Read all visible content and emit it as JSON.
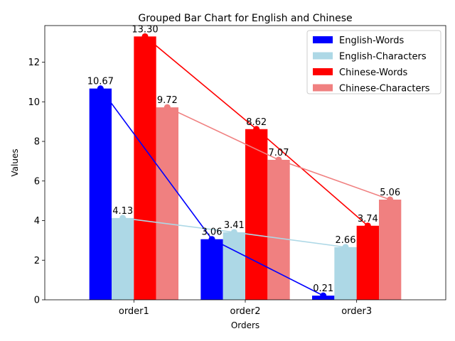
{
  "chart_data": {
    "type": "bar",
    "title": "Grouped Bar Chart for English and Chinese",
    "xlabel": "Orders",
    "ylabel": "Values",
    "categories": [
      "order1",
      "order2",
      "order3"
    ],
    "ylim": [
      0,
      13.85
    ],
    "yticks": [
      0,
      2,
      4,
      6,
      8,
      10,
      12
    ],
    "ytick_labels": [
      "0",
      "2",
      "4",
      "6",
      "8",
      "10",
      "12"
    ],
    "grid": false,
    "legend_position": "top-right",
    "series": [
      {
        "name": "English-Words",
        "color": "#0000ff",
        "values": [
          10.67,
          3.06,
          0.21
        ],
        "labels": [
          "10.67",
          "3.06",
          "0.21"
        ]
      },
      {
        "name": "English-Characters",
        "color": "#add8e6",
        "values": [
          4.13,
          3.41,
          2.66
        ],
        "labels": [
          "4.13",
          "3.41",
          "2.66"
        ]
      },
      {
        "name": "Chinese-Words",
        "color": "#ff0000",
        "values": [
          13.3,
          8.62,
          3.74
        ],
        "labels": [
          "13.30",
          "8.62",
          "3.74"
        ]
      },
      {
        "name": "Chinese-Characters",
        "color": "#f08080",
        "values": [
          9.72,
          7.07,
          5.06
        ],
        "labels": [
          "9.72",
          "7.07",
          "5.06"
        ]
      }
    ],
    "overlay": "line connecting each series' bar tops with dot markers"
  }
}
